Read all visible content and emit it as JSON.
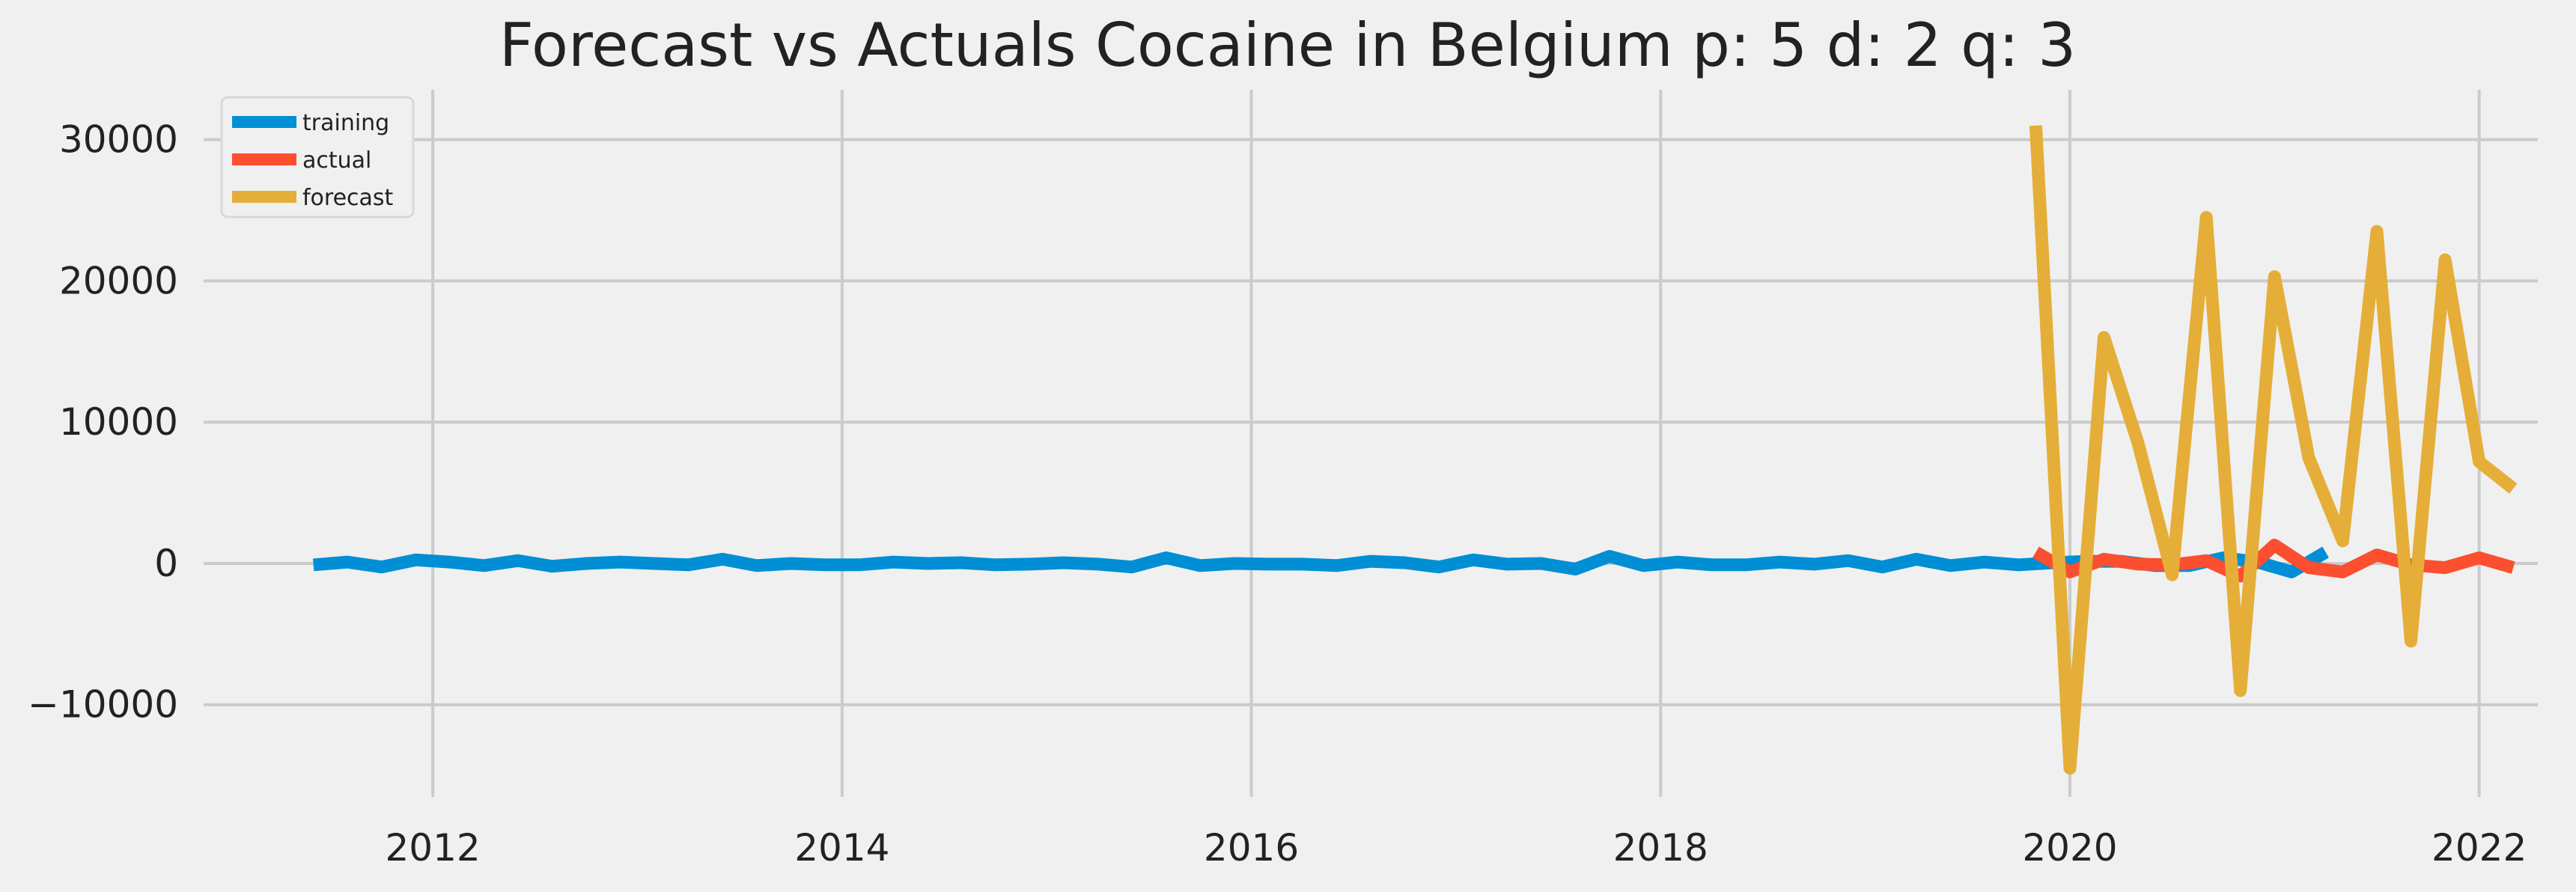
{
  "chart_data": {
    "type": "line",
    "title": "Forecast vs Actuals Cocaine in Belgium p: 5 d: 2 q: 3",
    "xlabel": "",
    "ylabel": "",
    "x_ticks": [
      "2012",
      "2014",
      "2016",
      "2018",
      "2020",
      "2022"
    ],
    "y_ticks": [
      "−10000",
      "0",
      "10000",
      "20000",
      "30000"
    ],
    "x_range": [
      "2010-12",
      "2022-04"
    ],
    "y_range": [
      -16000,
      33000
    ],
    "grid": true,
    "legend_position": "top-left",
    "series": [
      {
        "name": "training",
        "color": "#008fd5",
        "points": [
          [
            "2011-06",
            -100
          ],
          [
            "2011-08",
            100
          ],
          [
            "2011-10",
            -250
          ],
          [
            "2011-12",
            250
          ],
          [
            "2012-02",
            100
          ],
          [
            "2012-04",
            -150
          ],
          [
            "2012-06",
            200
          ],
          [
            "2012-08",
            -200
          ],
          [
            "2012-10",
            0
          ],
          [
            "2012-12",
            100
          ],
          [
            "2013-02",
            0
          ],
          [
            "2013-04",
            -100
          ],
          [
            "2013-06",
            300
          ],
          [
            "2013-08",
            -150
          ],
          [
            "2013-10",
            0
          ],
          [
            "2013-12",
            -100
          ],
          [
            "2014-02",
            -100
          ],
          [
            "2014-04",
            100
          ],
          [
            "2014-06",
            0
          ],
          [
            "2014-08",
            50
          ],
          [
            "2014-10",
            -100
          ],
          [
            "2014-12",
            -50
          ],
          [
            "2015-02",
            50
          ],
          [
            "2015-04",
            -50
          ],
          [
            "2015-06",
            -250
          ],
          [
            "2015-08",
            400
          ],
          [
            "2015-10",
            -150
          ],
          [
            "2015-12",
            0
          ],
          [
            "2016-02",
            -50
          ],
          [
            "2016-04",
            -50
          ],
          [
            "2016-06",
            -150
          ],
          [
            "2016-08",
            150
          ],
          [
            "2016-10",
            50
          ],
          [
            "2016-12",
            -250
          ],
          [
            "2017-02",
            250
          ],
          [
            "2017-04",
            -50
          ],
          [
            "2017-06",
            0
          ],
          [
            "2017-08",
            -400
          ],
          [
            "2017-10",
            500
          ],
          [
            "2017-12",
            -150
          ],
          [
            "2018-02",
            100
          ],
          [
            "2018-04",
            -100
          ],
          [
            "2018-06",
            -100
          ],
          [
            "2018-08",
            100
          ],
          [
            "2018-10",
            -50
          ],
          [
            "2018-12",
            200
          ],
          [
            "2019-02",
            -250
          ],
          [
            "2019-04",
            300
          ],
          [
            "2019-06",
            -150
          ],
          [
            "2019-08",
            100
          ],
          [
            "2019-10",
            -100
          ],
          [
            "2019-12",
            50
          ],
          [
            "2020-02",
            150
          ],
          [
            "2020-04",
            150
          ],
          [
            "2020-06",
            -150
          ],
          [
            "2020-08",
            -150
          ],
          [
            "2020-10",
            400
          ],
          [
            "2020-12",
            100
          ],
          [
            "2021-02",
            -600
          ],
          [
            "2021-04",
            800
          ]
        ]
      },
      {
        "name": "actual",
        "color": "#fc4f30",
        "points": [
          [
            "2019-11",
            800
          ],
          [
            "2020-01",
            -600
          ],
          [
            "2020-03",
            300
          ],
          [
            "2020-05",
            -50
          ],
          [
            "2020-07",
            -100
          ],
          [
            "2020-09",
            200
          ],
          [
            "2020-11",
            -900
          ],
          [
            "2021-01",
            1300
          ],
          [
            "2021-03",
            -300
          ],
          [
            "2021-05",
            -600
          ],
          [
            "2021-07",
            600
          ],
          [
            "2021-09",
            -100
          ],
          [
            "2021-11",
            -300
          ],
          [
            "2022-01",
            400
          ],
          [
            "2022-03",
            -300
          ]
        ]
      },
      {
        "name": "forecast",
        "color": "#e5ae38",
        "points": [
          [
            "2019-11",
            31000
          ],
          [
            "2020-01",
            -14500
          ],
          [
            "2020-03",
            16000
          ],
          [
            "2020-05",
            8500
          ],
          [
            "2020-07",
            -800
          ],
          [
            "2020-09",
            24500
          ],
          [
            "2020-11",
            -9000
          ],
          [
            "2021-01",
            20300
          ],
          [
            "2021-03",
            7500
          ],
          [
            "2021-05",
            1600
          ],
          [
            "2021-07",
            23500
          ],
          [
            "2021-09",
            -5500
          ],
          [
            "2021-11",
            21500
          ],
          [
            "2022-01",
            7200
          ],
          [
            "2022-03",
            5300
          ]
        ]
      }
    ]
  }
}
